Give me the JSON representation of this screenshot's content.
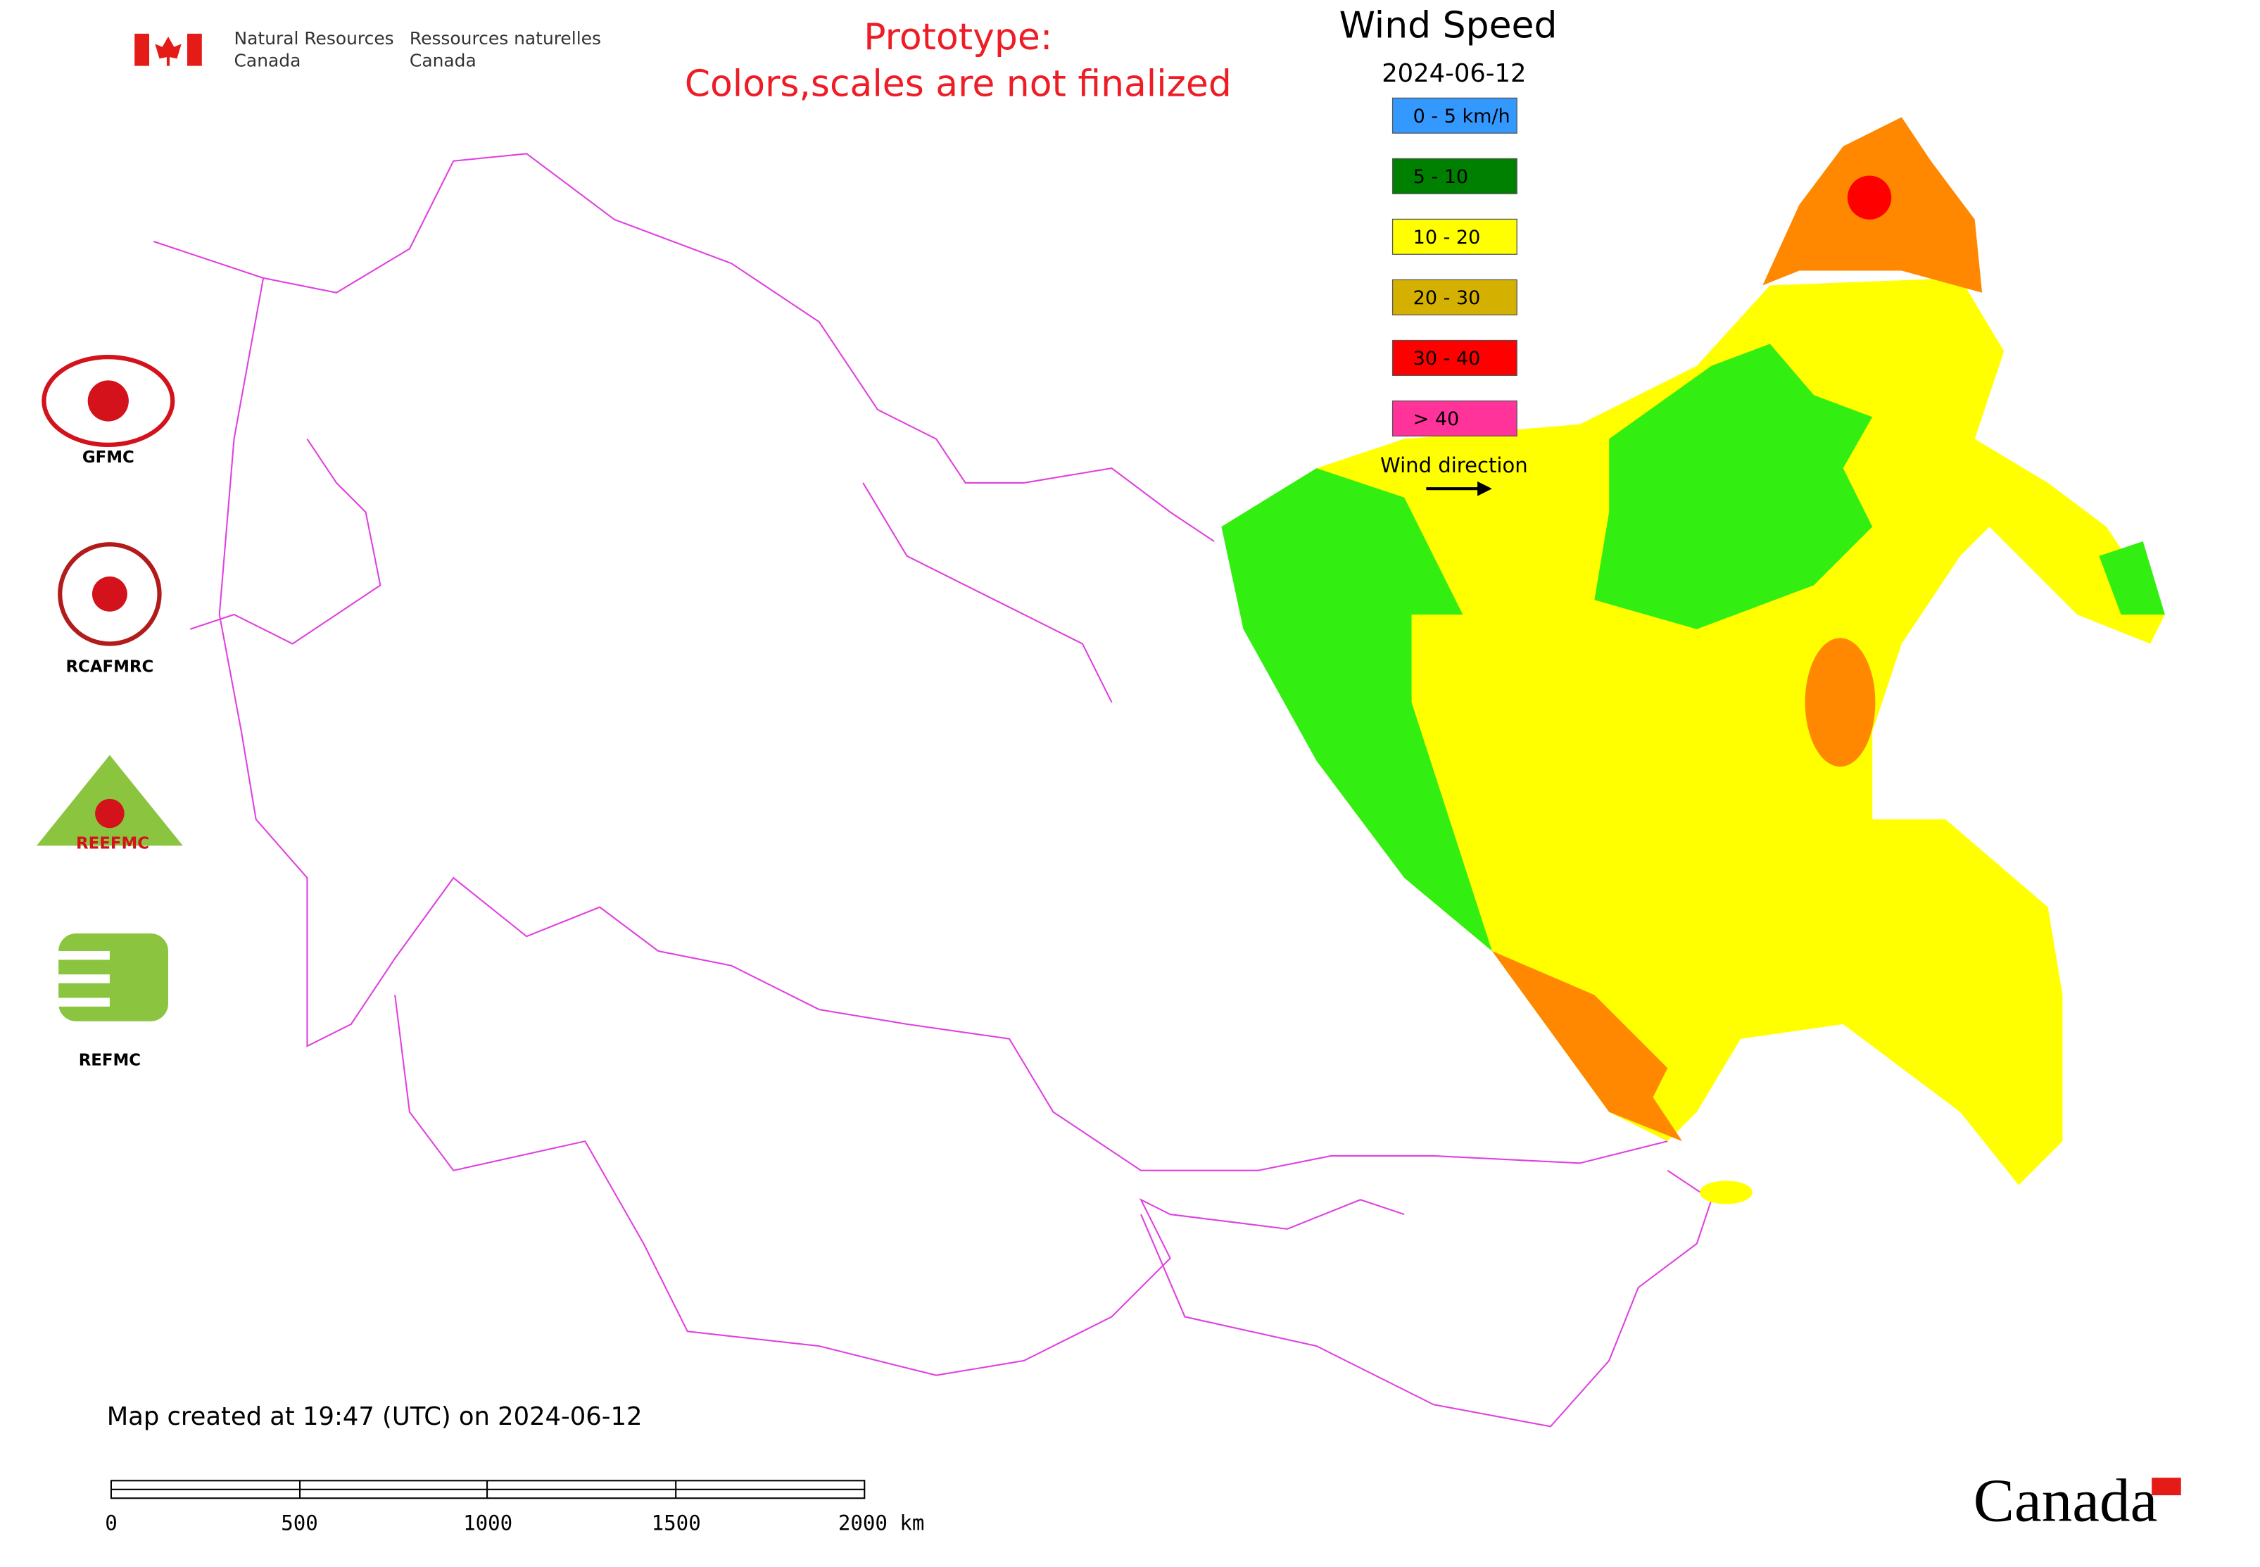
{
  "header": {
    "agency_en": [
      "Natural Resources",
      "Canada"
    ],
    "agency_fr": [
      "Ressources naturelles",
      "Canada"
    ],
    "prototype": [
      "Prototype:",
      "Colors,scales are not finalized"
    ]
  },
  "legend": {
    "title": "Wind Speed",
    "date": "2024-06-12",
    "items": [
      {
        "label": "0 - 5 km/h",
        "color": "#3399ff"
      },
      {
        "label": "5 - 10",
        "color": "#008000"
      },
      {
        "label": "10 - 20",
        "color": "#ffff00"
      },
      {
        "label": "20 - 30",
        "color": "#d4b000"
      },
      {
        "label": "30 - 40",
        "color": "#ff0000"
      },
      {
        "label": "> 40",
        "color": "#ff3399"
      }
    ],
    "direction_label": "Wind direction"
  },
  "logos": [
    "GFMC",
    "RCAFMRC",
    "REEFMC",
    "REFMC"
  ],
  "footer": {
    "created": "Map created at 19:47 (UTC) on 2024-06-12",
    "scale_labels": [
      "0",
      "500",
      "1000",
      "1500",
      "2000 km"
    ],
    "wordmark": "Canada"
  }
}
